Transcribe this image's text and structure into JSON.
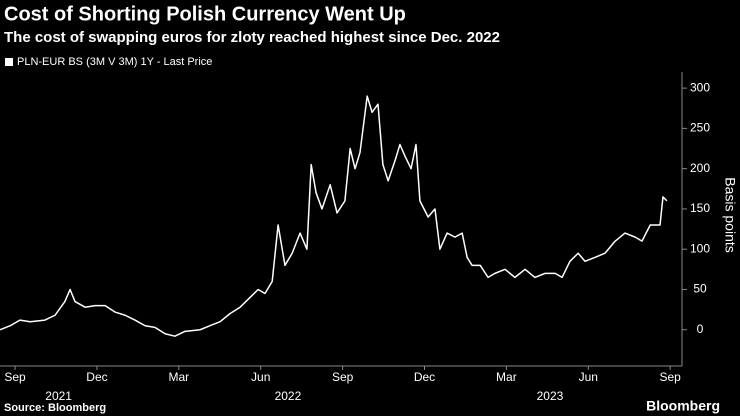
{
  "chart_data": {
    "type": "line",
    "title": "Cost of Shorting Polish Currency Went Up",
    "subtitle": "The cost of swapping euros for zloty reached highest since Dec. 2022",
    "y_label": "Basis points",
    "source": "Source: Bloomberg",
    "brand": "Bloomberg",
    "x": [
      2021.621,
      2021.652,
      2021.682,
      2021.713,
      2021.758,
      2021.789,
      2021.819,
      2021.835,
      2021.85,
      2021.881,
      2021.911,
      2021.942,
      2021.972,
      2022.003,
      2022.033,
      2022.064,
      2022.094,
      2022.125,
      2022.155,
      2022.186,
      2022.232,
      2022.262,
      2022.293,
      2022.323,
      2022.354,
      2022.384,
      2022.409,
      2022.43,
      2022.452,
      2022.47,
      2022.491,
      2022.513,
      2022.537,
      2022.558,
      2022.571,
      2022.586,
      2022.604,
      2022.629,
      2022.65,
      2022.674,
      2022.69,
      2022.705,
      2022.72,
      2022.742,
      2022.757,
      2022.775,
      2022.79,
      2022.806,
      2022.827,
      2022.842,
      2022.858,
      2022.876,
      2022.891,
      2022.903,
      2022.928,
      2022.949,
      2022.964,
      2022.986,
      2023.01,
      2023.032,
      2023.047,
      2023.062,
      2023.087,
      2023.111,
      2023.132,
      2023.163,
      2023.193,
      2023.224,
      2023.254,
      2023.285,
      2023.316,
      2023.337,
      2023.361,
      2023.386,
      2023.407,
      2023.438,
      2023.468,
      2023.499,
      2023.529,
      2023.56,
      2023.581,
      2023.606,
      2023.636,
      2023.645,
      2023.657
    ],
    "series": [
      {
        "name": "PLN-EUR BS (3M V 3M) 1Y - Last Price",
        "color": "#ffffff",
        "values": [
          0,
          5,
          12,
          10,
          12,
          18,
          35,
          50,
          35,
          28,
          30,
          30,
          22,
          18,
          12,
          5,
          3,
          -5,
          -8,
          -2,
          0,
          5,
          10,
          20,
          28,
          40,
          50,
          45,
          60,
          130,
          80,
          95,
          120,
          100,
          205,
          170,
          150,
          180,
          145,
          160,
          225,
          200,
          220,
          290,
          270,
          280,
          205,
          185,
          210,
          230,
          215,
          200,
          230,
          160,
          140,
          150,
          100,
          120,
          115,
          120,
          90,
          80,
          80,
          65,
          70,
          75,
          65,
          75,
          65,
          70,
          70,
          65,
          85,
          95,
          85,
          90,
          95,
          110,
          120,
          115,
          110,
          130,
          130,
          165,
          160
        ]
      }
    ],
    "xlim": [
      2021.621,
      2023.697
    ],
    "xticks": [
      {
        "value": 2021.667,
        "label": "Sep"
      },
      {
        "value": 2021.917,
        "label": "Dec"
      },
      {
        "value": 2022.167,
        "label": "Mar"
      },
      {
        "value": 2022.417,
        "label": "Jun"
      },
      {
        "value": 2022.667,
        "label": "Sep"
      },
      {
        "value": 2022.917,
        "label": "Dec"
      },
      {
        "value": 2023.167,
        "label": "Mar"
      },
      {
        "value": 2023.417,
        "label": "Jun"
      },
      {
        "value": 2023.667,
        "label": "Sep"
      }
    ],
    "year_labels": [
      {
        "value": 2021.8,
        "label": "2021"
      },
      {
        "value": 2022.5,
        "label": "2022"
      },
      {
        "value": 2023.3,
        "label": "2023"
      }
    ],
    "ylim": [
      -45,
      320
    ],
    "yticks": [
      0,
      50,
      100,
      150,
      200,
      250,
      300
    ]
  }
}
